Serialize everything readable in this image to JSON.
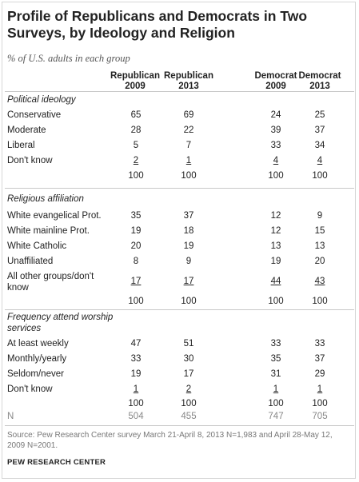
{
  "title": "Profile of Republicans and Democrats in Two Surveys, by Ideology and Religion",
  "subtitle": "% of U.S. adults in each group",
  "columns": [
    {
      "line1": "Republican",
      "line2": "2009"
    },
    {
      "line1": "Republican",
      "line2": "2013"
    },
    {
      "line1": "Democrat",
      "line2": "2009"
    },
    {
      "line1": "Democrat",
      "line2": "2013"
    }
  ],
  "sections": [
    {
      "heading": "Political ideology",
      "rows": [
        {
          "label": "Conservative",
          "values": [
            "65",
            "69",
            "24",
            "25"
          ]
        },
        {
          "label": "Moderate",
          "values": [
            "28",
            "22",
            "39",
            "37"
          ]
        },
        {
          "label": "Liberal",
          "values": [
            "5",
            "7",
            "33",
            "34"
          ]
        },
        {
          "label": "Don't know",
          "values": [
            "2",
            "1",
            "4",
            "4"
          ]
        }
      ],
      "totals": [
        "100",
        "100",
        "100",
        "100"
      ]
    },
    {
      "heading": "Religious affiliation",
      "rows": [
        {
          "label": "White evangelical Prot.",
          "values": [
            "35",
            "37",
            "12",
            "9"
          ]
        },
        {
          "label": "White mainline Prot.",
          "values": [
            "19",
            "18",
            "12",
            "15"
          ]
        },
        {
          "label": "White Catholic",
          "values": [
            "20",
            "19",
            "13",
            "13"
          ]
        },
        {
          "label": "Unaffiliated",
          "values": [
            "8",
            "9",
            "19",
            "20"
          ]
        },
        {
          "label_line1": "All other groups/don't",
          "label_line2": "know",
          "values": [
            "17",
            "17",
            "44",
            "43"
          ]
        }
      ],
      "totals": [
        "100",
        "100",
        "100",
        "100"
      ]
    },
    {
      "heading_line1": "Frequency attend worship",
      "heading_line2": "services",
      "rows": [
        {
          "label": "At least weekly",
          "values": [
            "47",
            "51",
            "33",
            "33"
          ]
        },
        {
          "label": "Monthly/yearly",
          "values": [
            "33",
            "30",
            "35",
            "37"
          ]
        },
        {
          "label": "Seldom/never",
          "values": [
            "19",
            "17",
            "31",
            "29"
          ]
        },
        {
          "label": "Don't know",
          "values": [
            "1",
            "2",
            "1",
            "1"
          ]
        }
      ],
      "totals": [
        "100",
        "100",
        "100",
        "100"
      ]
    }
  ],
  "n_row": {
    "label": "N",
    "values": [
      "504",
      "455",
      "747",
      "705"
    ]
  },
  "source": "Source: Pew Research Center survey March 21-April 8, 2013 N=1,983 and April 28-May 12, 2009 N=2001.",
  "org": "PEW RESEARCH CENTER"
}
